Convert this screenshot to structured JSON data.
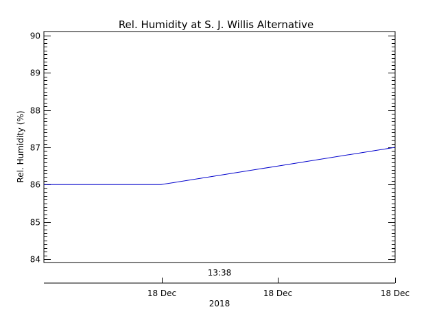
{
  "chart_data": {
    "type": "line",
    "title": "Rel. Humidity at S. J. Willis Alternative",
    "ylabel": "Rel. Humidity (%)",
    "xlabel": "",
    "ylim": [
      84,
      90
    ],
    "yticks": [
      "84",
      "85",
      "86",
      "87",
      "88",
      "89",
      "90"
    ],
    "grid": false,
    "x_axis": {
      "time_label": "13:38",
      "date_labels": [
        "18 Dec",
        "18 Dec",
        "18 Dec"
      ],
      "year_label": "2018"
    },
    "series": [
      {
        "color": "#0000cc",
        "x": [
          0,
          1,
          2,
          3
        ],
        "values": [
          86.0,
          86.0,
          86.5,
          87.0
        ]
      }
    ]
  }
}
